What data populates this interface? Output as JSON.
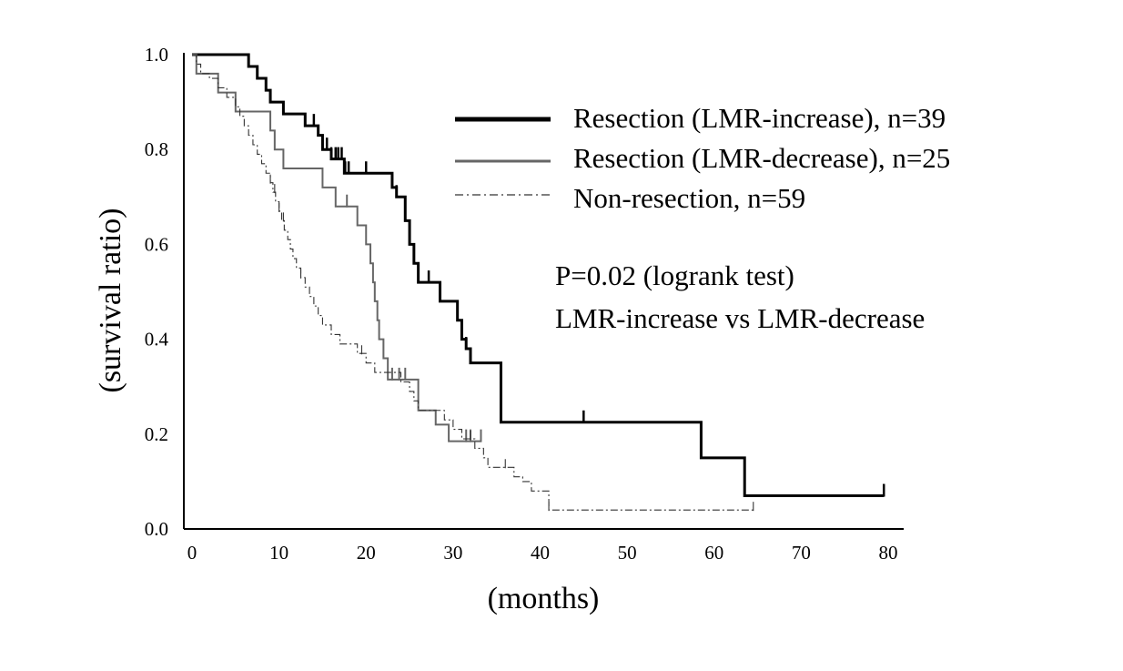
{
  "chart_data": {
    "type": "line",
    "xlabel": "(months)",
    "ylabel": "(survival ratio)",
    "xlim": [
      0,
      80
    ],
    "ylim": [
      0,
      1
    ],
    "x_ticks": [
      "0",
      "10",
      "20",
      "30",
      "40",
      "50",
      "60",
      "70",
      "80"
    ],
    "y_ticks": [
      "0.0",
      "0.2",
      "0.4",
      "0.6",
      "0.8",
      "1.0"
    ],
    "grid": false,
    "legend_position": "top-right",
    "annotations": [
      "P=0.02 (logrank test)",
      "LMR-increase vs LMR-decrease"
    ],
    "series": [
      {
        "name": "Resection (LMR-increase), n=39",
        "color": "#000000",
        "style": "solid-thick",
        "steps": [
          [
            0,
            1.0
          ],
          [
            6.5,
            0.975
          ],
          [
            7.5,
            0.95
          ],
          [
            8.5,
            0.925
          ],
          [
            9,
            0.9
          ],
          [
            10.5,
            0.875
          ],
          [
            13,
            0.85
          ],
          [
            14.5,
            0.83
          ],
          [
            15,
            0.8
          ],
          [
            16,
            0.78
          ],
          [
            17.5,
            0.75
          ],
          [
            23,
            0.72
          ],
          [
            23.5,
            0.7
          ],
          [
            24.5,
            0.65
          ],
          [
            25,
            0.6
          ],
          [
            25.5,
            0.56
          ],
          [
            26,
            0.52
          ],
          [
            28.5,
            0.48
          ],
          [
            30.5,
            0.44
          ],
          [
            31,
            0.4
          ],
          [
            31.5,
            0.38
          ],
          [
            32,
            0.35
          ],
          [
            35.5,
            0.225
          ],
          [
            58.5,
            0.15
          ],
          [
            63.5,
            0.07
          ]
        ],
        "end_x": 79.5,
        "censor_x": [
          9,
          14,
          15.5,
          16,
          16.5,
          16.8,
          17.2,
          17.6,
          18,
          20,
          23.5,
          27.2,
          28.5,
          31,
          31.5,
          45,
          79.5
        ]
      },
      {
        "name": "Resection (LMR-decrease), n=25",
        "color": "#666666",
        "style": "solid",
        "steps": [
          [
            0,
            1.0
          ],
          [
            0.5,
            0.96
          ],
          [
            3,
            0.92
          ],
          [
            5,
            0.88
          ],
          [
            9,
            0.84
          ],
          [
            9.5,
            0.8
          ],
          [
            10.5,
            0.76
          ],
          [
            15,
            0.72
          ],
          [
            16.5,
            0.68
          ],
          [
            19,
            0.64
          ],
          [
            20,
            0.6
          ],
          [
            20.5,
            0.56
          ],
          [
            20.8,
            0.52
          ],
          [
            21,
            0.48
          ],
          [
            21.3,
            0.44
          ],
          [
            21.5,
            0.4
          ],
          [
            22,
            0.36
          ],
          [
            22.5,
            0.315
          ],
          [
            26,
            0.25
          ],
          [
            28,
            0.22
          ],
          [
            29.5,
            0.185
          ]
        ],
        "end_x": 33.2,
        "censor_x": [
          17.8,
          23,
          23.8,
          24.5,
          31.5,
          32,
          33.2
        ]
      },
      {
        "name": "Non-resection, n=59",
        "color": "#333333",
        "style": "dash-dot",
        "steps": [
          [
            0,
            1.0
          ],
          [
            0.5,
            0.98
          ],
          [
            1,
            0.96
          ],
          [
            2,
            0.95
          ],
          [
            3,
            0.93
          ],
          [
            4,
            0.91
          ],
          [
            5,
            0.89
          ],
          [
            5.5,
            0.87
          ],
          [
            6,
            0.85
          ],
          [
            6.5,
            0.83
          ],
          [
            7,
            0.81
          ],
          [
            7.5,
            0.79
          ],
          [
            8,
            0.77
          ],
          [
            8.5,
            0.75
          ],
          [
            9,
            0.73
          ],
          [
            9.3,
            0.71
          ],
          [
            9.6,
            0.69
          ],
          [
            10,
            0.67
          ],
          [
            10.3,
            0.65
          ],
          [
            10.6,
            0.63
          ],
          [
            11,
            0.61
          ],
          [
            11.3,
            0.59
          ],
          [
            11.6,
            0.57
          ],
          [
            12,
            0.55
          ],
          [
            12.5,
            0.53
          ],
          [
            13,
            0.51
          ],
          [
            13.5,
            0.49
          ],
          [
            14,
            0.47
          ],
          [
            14.5,
            0.45
          ],
          [
            15,
            0.43
          ],
          [
            16,
            0.41
          ],
          [
            17,
            0.39
          ],
          [
            19,
            0.37
          ],
          [
            20,
            0.35
          ],
          [
            21,
            0.33
          ],
          [
            24,
            0.31
          ],
          [
            25,
            0.29
          ],
          [
            25.5,
            0.27
          ],
          [
            26,
            0.25
          ],
          [
            29,
            0.23
          ],
          [
            30,
            0.21
          ],
          [
            31,
            0.19
          ],
          [
            32.5,
            0.17
          ],
          [
            33.5,
            0.15
          ],
          [
            34,
            0.13
          ],
          [
            37,
            0.11
          ],
          [
            38,
            0.1
          ],
          [
            39,
            0.08
          ],
          [
            41,
            0.04
          ]
        ],
        "end_x": 64.5,
        "censor_x": [
          9,
          9.5,
          10,
          10.5,
          12.5,
          19.5,
          32,
          36,
          41,
          64.5
        ]
      }
    ]
  }
}
